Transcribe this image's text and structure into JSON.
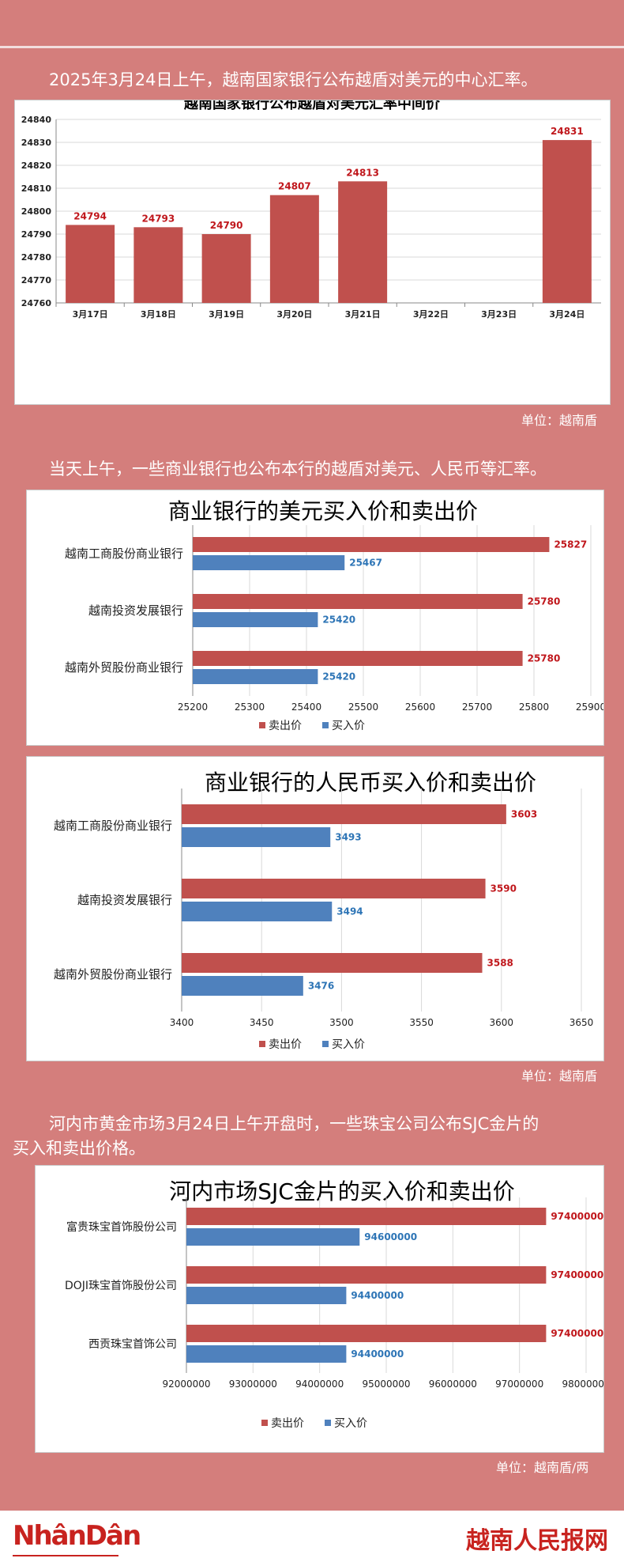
{
  "intro": {
    "line1": "2025年3月24日上午，越南国家银行公布越盾对美元的中心汇率。",
    "unit1": "单位：越南盾",
    "line2": "当天上午，一些商业银行也公布本行的越盾对美元、人民币等汇率。",
    "unit2": "单位：越南盾",
    "line3a": "河内市黄金市场3月24日上午开盘时，一些珠宝公司公布SJC金片的",
    "line3b": "买入和卖出价格。",
    "unit3": "单位：越南盾/两"
  },
  "footer": {
    "logo": "NhânDân",
    "brand": "越南人民报网"
  },
  "colors": {
    "sell": "#c0504d",
    "buy": "#4f81bd",
    "label_sell": "#c0171c",
    "label_buy": "#2e75b6"
  },
  "chart_data": [
    {
      "type": "bar",
      "title": "越南国家银行公布越盾对美元汇率中间价",
      "categories": [
        "3月17日",
        "3月18日",
        "3月19日",
        "3月20日",
        "3月21日",
        "3月22日",
        "3月23日",
        "3月24日"
      ],
      "values": [
        24794,
        24793,
        24790,
        24807,
        24813,
        null,
        null,
        24831
      ],
      "ylim": [
        24760,
        24840
      ],
      "yticks": [
        "24760",
        "24770",
        "24780",
        "24790",
        "24800",
        "24810",
        "24820",
        "24830",
        "24840"
      ],
      "grid": true
    },
    {
      "type": "bar",
      "orientation": "horizontal",
      "title": "商业银行的美元买入价和卖出价",
      "categories": [
        "越南工商股份商业银行",
        "越南投资发展银行",
        "越南外贸股份商业银行"
      ],
      "series": [
        {
          "name": "卖出价",
          "values": [
            25827,
            25780,
            25780
          ]
        },
        {
          "name": "买入价",
          "values": [
            25467,
            25420,
            25420
          ]
        }
      ],
      "xlim": [
        25200,
        25900
      ],
      "xticks": [
        "25200",
        "25300",
        "25400",
        "25500",
        "25600",
        "25700",
        "25800",
        "25900"
      ],
      "legend": "bottom"
    },
    {
      "type": "bar",
      "orientation": "horizontal",
      "title": "商业银行的人民币买入价和卖出价",
      "categories": [
        "越南工商股份商业银行",
        "越南投资发展银行",
        "越南外贸股份商业银行"
      ],
      "series": [
        {
          "name": "卖出价",
          "values": [
            3603,
            3590,
            3588
          ]
        },
        {
          "name": "买入价",
          "values": [
            3493,
            3494,
            3476
          ]
        }
      ],
      "xlim": [
        3400,
        3650
      ],
      "xticks": [
        "3400",
        "3450",
        "3500",
        "3550",
        "3600",
        "3650"
      ],
      "legend": "bottom"
    },
    {
      "type": "bar",
      "orientation": "horizontal",
      "title": "河内市场SJC金片的买入价和卖出价",
      "categories": [
        "富贵珠宝首饰股份公司",
        "DOJI珠宝首饰股份公司",
        "西贡珠宝首饰公司"
      ],
      "series": [
        {
          "name": "卖出价",
          "values": [
            97400000,
            97400000,
            97400000
          ]
        },
        {
          "name": "买入价",
          "values": [
            94600000,
            94400000,
            94400000
          ]
        }
      ],
      "xlim": [
        92000000,
        98000000
      ],
      "xticks": [
        "92000000",
        "93000000",
        "94000000",
        "95000000",
        "96000000",
        "97000000",
        "98000000"
      ],
      "legend": "bottom"
    }
  ]
}
